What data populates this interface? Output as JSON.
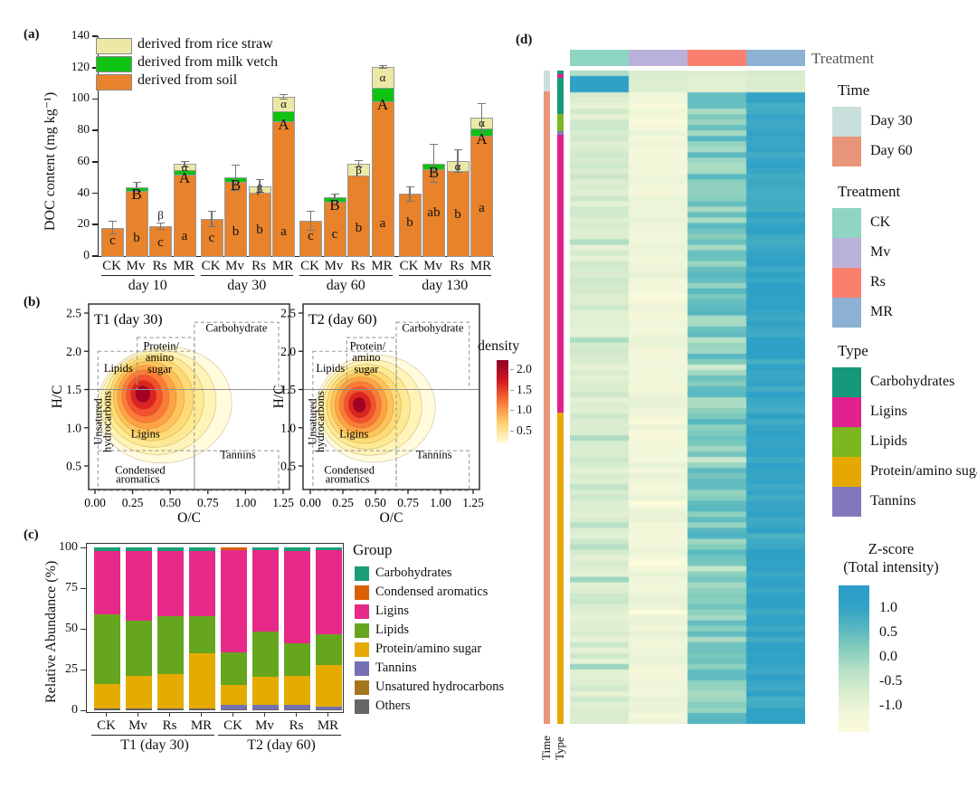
{
  "chart_data": [
    {
      "id": "a",
      "panel_label": "(a)",
      "type": "bar",
      "stacked": true,
      "ylabel": "DOC content (mg kg⁻¹)",
      "y_ticks": [
        0,
        20,
        40,
        60,
        80,
        100,
        120,
        140
      ],
      "ylim": [
        0,
        140
      ],
      "legend": [
        {
          "label": "derived from rice straw",
          "color": "#ece9a6"
        },
        {
          "label": "derived from milk vetch",
          "color": "#0fc313"
        },
        {
          "label": "derived from soil",
          "color": "#e8822b"
        }
      ],
      "series_order_bottom_to_top": [
        "soil",
        "milk vetch",
        "rice straw"
      ],
      "groups": [
        {
          "name": "day 10",
          "bars": [
            {
              "treatment": "CK",
              "soil": 18,
              "vetch": 0,
              "straw": 0,
              "err": 4,
              "letter": "c",
              "letter_y": 9,
              "vetch_letter": null,
              "straw_letter": null
            },
            {
              "treatment": "Mv",
              "soil": 41.5,
              "vetch": 2.5,
              "straw": 0,
              "err": 3,
              "letter": "b",
              "letter_y": 11,
              "vetch_letter": "B",
              "straw_letter": null
            },
            {
              "treatment": "Rs",
              "soil": 19,
              "vetch": 0,
              "straw": 0,
              "err": 2,
              "letter": "c",
              "letter_y": 8,
              "vetch_letter": null,
              "straw_letter": "β"
            },
            {
              "treatment": "MR",
              "soil": 52,
              "vetch": 2.5,
              "straw": 4,
              "err": 1.5,
              "letter": "a",
              "letter_y": 12,
              "vetch_letter": "A",
              "straw_letter": "α"
            }
          ]
        },
        {
          "name": "day 30",
          "bars": [
            {
              "treatment": "CK",
              "soil": 23.5,
              "vetch": 0,
              "straw": 0,
              "err": 5,
              "letter": "c",
              "letter_y": 11,
              "vetch_letter": null,
              "straw_letter": null
            },
            {
              "treatment": "Mv",
              "soil": 47,
              "vetch": 3,
              "straw": 0,
              "err": 8,
              "letter": "b",
              "letter_y": 15,
              "vetch_letter": "B",
              "straw_letter": null
            },
            {
              "treatment": "Rs",
              "soil": 40.5,
              "vetch": 0,
              "straw": 4,
              "err": 4,
              "letter": "b",
              "letter_y": 16,
              "vetch_letter": null,
              "straw_letter": "β"
            },
            {
              "treatment": "MR",
              "soil": 86,
              "vetch": 6,
              "straw": 9.5,
              "err": 1.5,
              "letter": "a",
              "letter_y": 15,
              "vetch_letter": "A",
              "straw_letter": "α"
            }
          ]
        },
        {
          "name": "day 60",
          "bars": [
            {
              "treatment": "CK",
              "soil": 22.5,
              "vetch": 0,
              "straw": 0,
              "err": 6,
              "letter": "c",
              "letter_y": 12,
              "vetch_letter": null,
              "straw_letter": null
            },
            {
              "treatment": "Mv",
              "soil": 34.5,
              "vetch": 3,
              "straw": 0,
              "err": 2,
              "letter": "c",
              "letter_y": 13,
              "vetch_letter": "B",
              "straw_letter": null
            },
            {
              "treatment": "Rs",
              "soil": 51,
              "vetch": 0,
              "straw": 8,
              "err": 2,
              "letter": "b",
              "letter_y": 17,
              "vetch_letter": null,
              "straw_letter": "β"
            },
            {
              "treatment": "MR",
              "soil": 98.5,
              "vetch": 8.5,
              "straw": 13.5,
              "err": 1,
              "letter": "a",
              "letter_y": 20,
              "vetch_letter": "A",
              "straw_letter": "α"
            }
          ]
        },
        {
          "name": "day 130",
          "bars": [
            {
              "treatment": "CK",
              "soil": 39.5,
              "vetch": 0,
              "straw": 0,
              "err": 4.5,
              "letter": "b",
              "letter_y": 21,
              "vetch_letter": null,
              "straw_letter": null
            },
            {
              "treatment": "Mv",
              "soil": 55.5,
              "vetch": 3.5,
              "straw": 0,
              "err": 12,
              "letter": "ab",
              "letter_y": 27,
              "vetch_letter": "B",
              "straw_letter": null
            },
            {
              "treatment": "Rs",
              "soil": 54,
              "vetch": 0,
              "straw": 6.5,
              "err": 7,
              "letter": "b",
              "letter_y": 26,
              "vetch_letter": null,
              "straw_letter": "α"
            },
            {
              "treatment": "MR",
              "soil": 76.5,
              "vetch": 4.5,
              "straw": 7,
              "err": 9,
              "letter": "a",
              "letter_y": 30,
              "vetch_letter": "A",
              "straw_letter": "α"
            }
          ]
        }
      ]
    },
    {
      "id": "b",
      "panel_label": "(b)",
      "type": "density-contour",
      "xlabel": "O/C",
      "ylabel": "H/C",
      "x_ticks": [
        "0.00",
        "0.25",
        "0.50",
        "0.75",
        "1.00",
        "1.25"
      ],
      "y_ticks": [
        "0.5",
        "1.0",
        "1.5",
        "2.0",
        "2.5"
      ],
      "xlim": [
        0,
        1.25
      ],
      "ylim": [
        0.5,
        2.5
      ],
      "hline_solid": 1.5,
      "region_boxes": [
        {
          "x0": 0.02,
          "x1": 0.66,
          "y0": 0.18,
          "y1": 2.0
        },
        {
          "x0": 0.28,
          "x1": 0.66,
          "y0": 1.5,
          "y1": 2.18
        },
        {
          "x0": 0.66,
          "x1": 1.22,
          "y0": 1.5,
          "y1": 2.38
        },
        {
          "x0": 0.66,
          "x1": 1.22,
          "y0": 0.18,
          "y1": 0.7
        }
      ],
      "dashed_hline": {
        "y": 0.7,
        "x0": 0.02,
        "x1": 0.66
      },
      "region_labels": [
        {
          "text": "Lipids",
          "x": 0.155,
          "y": 1.73,
          "rot": 0
        },
        {
          "text": "Protein/",
          "x": 0.44,
          "y": 2.02,
          "rot": 0
        },
        {
          "text": "amino",
          "x": 0.43,
          "y": 1.87,
          "rot": 0
        },
        {
          "text": "sugar",
          "x": 0.43,
          "y": 1.72,
          "rot": 0
        },
        {
          "text": "Carbohydrate",
          "x": 0.94,
          "y": 2.26,
          "rot": 0
        },
        {
          "text": "Unsatured",
          "x": 0.045,
          "y": 1.08,
          "rot": -90
        },
        {
          "text": "hydrocarbons",
          "x": 0.105,
          "y": 1.08,
          "rot": -90
        },
        {
          "text": "Ligins",
          "x": 0.335,
          "y": 0.87,
          "rot": 0
        },
        {
          "text": "Tannins",
          "x": 0.95,
          "y": 0.6,
          "rot": 0
        },
        {
          "text": "Condensed",
          "x": 0.3,
          "y": 0.4,
          "rot": 0
        },
        {
          "text": "aromatics",
          "x": 0.285,
          "y": 0.28,
          "rot": 0
        }
      ],
      "contour_colors": [
        "#fffbdc",
        "#fff4b8",
        "#feea94",
        "#fedb76",
        "#fec35c",
        "#fea346",
        "#fc7b38",
        "#f4512e",
        "#dc2321",
        "#a30024"
      ],
      "plots": [
        {
          "title": "T1 (day 30)",
          "rot": -8,
          "levels": [
            [
              0.46,
              1.3,
              0.45,
              0.76
            ],
            [
              0.42,
              1.33,
              0.385,
              0.68
            ],
            [
              0.395,
              1.355,
              0.33,
              0.61
            ],
            [
              0.375,
              1.375,
              0.28,
              0.545
            ],
            [
              0.358,
              1.39,
              0.235,
              0.48
            ],
            [
              0.345,
              1.4,
              0.195,
              0.415
            ],
            [
              0.335,
              1.41,
              0.157,
              0.345
            ],
            [
              0.328,
              1.42,
              0.12,
              0.27
            ],
            [
              0.322,
              1.43,
              0.085,
              0.19
            ],
            [
              0.318,
              1.44,
              0.05,
              0.11
            ]
          ]
        },
        {
          "title": "T2 (day 60)",
          "rot": -5,
          "levels": [
            [
              0.5,
              1.25,
              0.46,
              0.7
            ],
            [
              0.462,
              1.265,
              0.395,
              0.625
            ],
            [
              0.432,
              1.275,
              0.335,
              0.555
            ],
            [
              0.412,
              1.285,
              0.285,
              0.49
            ],
            [
              0.398,
              1.29,
              0.24,
              0.43
            ],
            [
              0.39,
              1.295,
              0.2,
              0.37
            ],
            [
              0.385,
              1.3,
              0.16,
              0.305
            ],
            [
              0.381,
              1.3,
              0.122,
              0.24
            ],
            [
              0.379,
              1.3,
              0.086,
              0.17
            ],
            [
              0.377,
              1.3,
              0.05,
              0.1
            ]
          ]
        }
      ],
      "density_legend": {
        "title": "density",
        "ticks": [
          "2.0",
          "1.5",
          "1.0",
          "0.5"
        ],
        "stops": [
          "#8c0023",
          "#d21822",
          "#fa7636",
          "#fecf6a",
          "#fffbe0"
        ]
      }
    },
    {
      "id": "c",
      "panel_label": "(c)",
      "type": "bar-stacked-100",
      "ylabel": "Relative Abundance (%)",
      "y_ticks": [
        0,
        25,
        50,
        75,
        100
      ],
      "legend_title": "Group",
      "legend_order": [
        "Carbohydrates",
        "Condensed aromatics",
        "Ligins",
        "Lipids",
        "Protein/amino sugar",
        "Tannins",
        "Unsatured hydrocarbons",
        "Others"
      ],
      "colors": {
        "Carbohydrates": "#1b9e77",
        "Condensed aromatics": "#d95f02",
        "Ligins": "#e7298a",
        "Lipids": "#66a61e",
        "Protein/amino sugar": "#e6ab02",
        "Tannins": "#7570b3",
        "Unsatured hydrocarbons": "#a6761d",
        "Others": "#666666"
      },
      "stack_order_bottom_to_top": [
        "Others",
        "Tannins",
        "Unsatured hydrocarbons",
        "Protein/amino sugar",
        "Lipids",
        "Ligins",
        "Condensed aromatics",
        "Carbohydrates"
      ],
      "groups": [
        {
          "name": "T1 (day 30)",
          "bars": [
            {
              "treatment": "CK",
              "values": [
                1,
                0,
                0,
                15,
                43,
                39,
                0,
                2
              ]
            },
            {
              "treatment": "Mv",
              "values": [
                1,
                0,
                0,
                20,
                34,
                43,
                0,
                2
              ]
            },
            {
              "treatment": "Rs",
              "values": [
                1,
                0,
                0,
                21,
                36,
                40,
                0,
                2
              ]
            },
            {
              "treatment": "MR",
              "values": [
                1,
                0,
                0,
                34,
                23,
                40,
                0,
                2
              ]
            }
          ]
        },
        {
          "name": "T2 (day 60)",
          "bars": [
            {
              "treatment": "CK",
              "values": [
                0.5,
                3,
                0,
                12,
                20,
                63,
                1.5,
                0
              ]
            },
            {
              "treatment": "Mv",
              "values": [
                0.5,
                3,
                0,
                17,
                28,
                50,
                0,
                1.5
              ]
            },
            {
              "treatment": "Rs",
              "values": [
                0.5,
                3,
                0,
                17.5,
                20,
                57,
                0,
                2
              ]
            },
            {
              "treatment": "MR",
              "values": [
                0.5,
                1.5,
                0,
                26,
                18.5,
                52,
                0,
                1.5
              ]
            }
          ]
        }
      ]
    },
    {
      "id": "d",
      "panel_label": "(d)",
      "type": "heatmap",
      "top_annotation_label": "Treatment",
      "columns": [
        "CK",
        "Mv",
        "Rs",
        "MR"
      ],
      "treatment_colors": {
        "CK": "#8fd5c4",
        "Mv": "#b9b1d9",
        "Rs": "#f9806e",
        "MR": "#8cb1d2"
      },
      "row_count": 120,
      "seed": 42,
      "top_rows": [
        [
          0.15,
          -0.45,
          -0.5,
          -0.35
        ],
        [
          1.4,
          -0.5,
          -0.55,
          -0.45
        ],
        [
          1.38,
          -0.52,
          -0.6,
          -0.4
        ],
        [
          1.42,
          -0.48,
          -0.58,
          -0.45
        ]
      ],
      "body_col_mean": [
        -0.45,
        -0.92,
        0.55,
        1.28
      ],
      "body_col_jitter": [
        0.28,
        0.22,
        0.38,
        0.18
      ],
      "zscore_stops": [
        [
          -1.4,
          "#fbfbda"
        ],
        [
          -0.85,
          "#eef5d8"
        ],
        [
          -0.35,
          "#d6ebcd"
        ],
        [
          0.1,
          "#b4dfc6"
        ],
        [
          0.55,
          "#83ccbc"
        ],
        [
          0.95,
          "#55b6c1"
        ],
        [
          1.35,
          "#31a2c6"
        ],
        [
          1.7,
          "#2a9cc8"
        ]
      ],
      "time_segments": [
        {
          "label": "Day 30",
          "color": "#c9dfdb",
          "frac": 0.032
        },
        {
          "label": "Day 60",
          "color": "#e89579",
          "frac": 0.968
        }
      ],
      "type_segments": [
        {
          "label": "Carbohydrates",
          "color": "#15997a",
          "frac": 0.006
        },
        {
          "label": "Ligins",
          "color": "#e0218e",
          "frac": 0.005
        },
        {
          "label": "Carbohydrates",
          "color": "#15997a",
          "frac": 0.055
        },
        {
          "label": "Lipids",
          "color": "#7cb621",
          "frac": 0.027
        },
        {
          "label": "Tannins",
          "color": "#8279bd",
          "frac": 0.006
        },
        {
          "label": "Ligins",
          "color": "#e0218e",
          "frac": 0.424
        },
        {
          "label": "Protein/amino sugar",
          "color": "#e6a800",
          "frac": 0.477
        }
      ],
      "bottom_axis_labels": [
        "Time",
        "Type"
      ],
      "legends": {
        "time": {
          "title": "Time",
          "items": [
            {
              "label": "Day 30",
              "color": "#c9dfdb"
            },
            {
              "label": "Day 60",
              "color": "#e89579"
            }
          ]
        },
        "treatment": {
          "title": "Treatment",
          "items": [
            {
              "label": "CK",
              "color": "#8fd5c4"
            },
            {
              "label": "Mv",
              "color": "#b9b1d9"
            },
            {
              "label": "Rs",
              "color": "#f9806e"
            },
            {
              "label": "MR",
              "color": "#8cb1d2"
            }
          ]
        },
        "type": {
          "title": "Type",
          "items": [
            {
              "label": "Carbohydrates",
              "color": "#15997a"
            },
            {
              "label": "Ligins",
              "color": "#e0218e"
            },
            {
              "label": "Lipids",
              "color": "#7cb621"
            },
            {
              "label": "Protein/amino sugar",
              "color": "#e6a800"
            },
            {
              "label": "Tannins",
              "color": "#8279bd"
            }
          ]
        },
        "zscore": {
          "title_line1": "Z-score",
          "title_line2": "(Total intensity)",
          "ticks": [
            "1.0",
            "0.5",
            "0.0",
            "-0.5",
            "-1.0"
          ]
        }
      }
    }
  ]
}
